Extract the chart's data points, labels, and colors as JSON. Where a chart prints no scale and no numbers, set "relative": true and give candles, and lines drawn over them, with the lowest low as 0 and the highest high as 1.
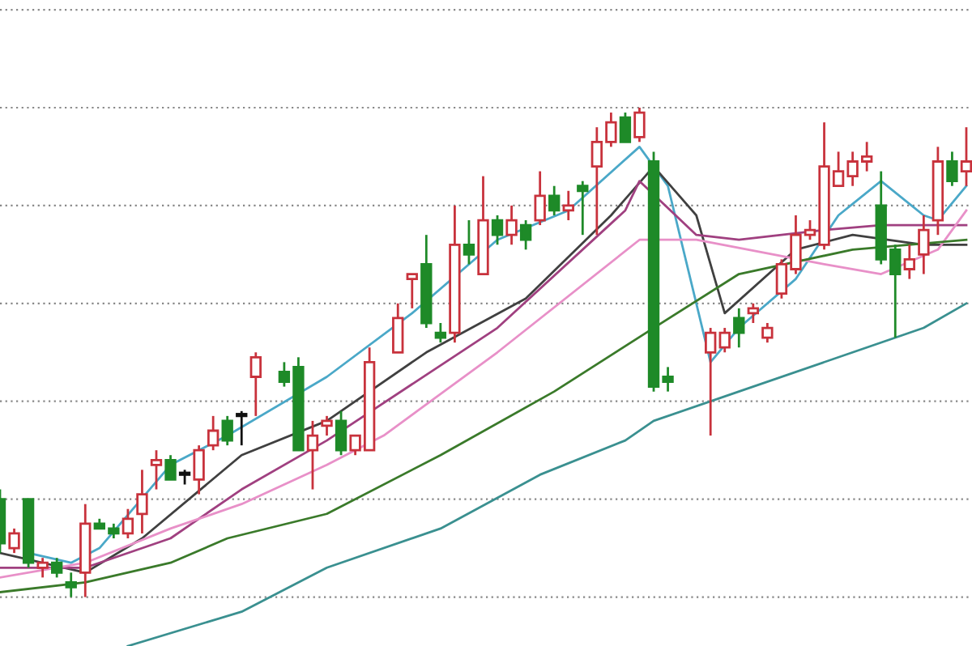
{
  "chart_data": {
    "type": "candlestick",
    "relative": true,
    "grid": "y",
    "categories": [
      null,
      null,
      null,
      null,
      null,
      null,
      null,
      null,
      null,
      null,
      null,
      null,
      null,
      null,
      null,
      null,
      null,
      null,
      null,
      null,
      null,
      null,
      null,
      null,
      null,
      null,
      null,
      null,
      null,
      null,
      null,
      null,
      null,
      null,
      null,
      null,
      null,
      null,
      null,
      null,
      null,
      null,
      null,
      null,
      null,
      null,
      null,
      null,
      null,
      null,
      null,
      null,
      null,
      null,
      null,
      null,
      null,
      null,
      null,
      null,
      null,
      null,
      null,
      null,
      null,
      null,
      null,
      null,
      null
    ],
    "ohlc": [
      [
        0.2,
        0.22,
        0.09,
        0.11
      ],
      [
        0.1,
        0.14,
        0.09,
        0.13
      ],
      [
        0.2,
        0.2,
        0.06,
        0.07
      ],
      [
        0.06,
        0.08,
        0.04,
        0.07
      ],
      [
        0.07,
        0.08,
        0.04,
        0.05
      ],
      [
        0.03,
        0.05,
        0.0,
        0.02
      ],
      [
        0.05,
        0.19,
        0.0,
        0.15
      ],
      [
        0.15,
        0.16,
        0.14,
        0.14
      ],
      [
        0.14,
        0.15,
        0.12,
        0.13
      ],
      [
        0.13,
        0.18,
        0.12,
        0.16
      ],
      [
        0.17,
        0.26,
        0.13,
        0.21
      ],
      [
        0.27,
        0.3,
        0.22,
        0.28
      ],
      [
        0.28,
        0.29,
        0.24,
        0.24
      ],
      [
        0.25,
        0.26,
        0.23,
        0.25
      ],
      [
        0.24,
        0.31,
        0.21,
        0.3
      ],
      [
        0.31,
        0.37,
        0.3,
        0.34
      ],
      [
        0.36,
        0.37,
        0.31,
        0.32
      ],
      [
        0.37,
        0.38,
        0.31,
        0.37
      ],
      [
        0.45,
        0.5,
        0.37,
        0.49
      ],
      null,
      [
        0.46,
        0.48,
        0.43,
        0.44
      ],
      [
        0.47,
        0.49,
        0.3,
        0.3
      ],
      [
        0.3,
        0.36,
        0.22,
        0.33
      ],
      [
        0.35,
        0.37,
        0.33,
        0.36
      ],
      [
        0.36,
        0.38,
        0.29,
        0.3
      ],
      [
        0.3,
        0.33,
        0.29,
        0.33
      ],
      [
        0.3,
        0.51,
        0.3,
        0.48
      ],
      null,
      [
        0.5,
        0.6,
        0.5,
        0.57
      ],
      [
        0.65,
        0.66,
        0.59,
        0.66
      ],
      [
        0.68,
        0.74,
        0.55,
        0.56
      ],
      [
        0.54,
        0.56,
        0.52,
        0.53
      ],
      [
        0.54,
        0.8,
        0.52,
        0.72
      ],
      [
        0.72,
        0.77,
        0.68,
        0.7
      ],
      [
        0.66,
        0.86,
        0.66,
        0.77
      ],
      [
        0.77,
        0.78,
        0.72,
        0.74
      ],
      [
        0.74,
        0.8,
        0.72,
        0.77
      ],
      [
        0.76,
        0.77,
        0.71,
        0.73
      ],
      [
        0.77,
        0.87,
        0.76,
        0.82
      ],
      [
        0.82,
        0.84,
        0.78,
        0.79
      ],
      [
        0.79,
        0.83,
        0.77,
        0.8
      ],
      [
        0.84,
        0.85,
        0.74,
        0.83
      ],
      [
        0.88,
        0.96,
        0.74,
        0.93
      ],
      [
        0.93,
        0.99,
        0.92,
        0.97
      ],
      [
        0.98,
        0.99,
        0.93,
        0.93
      ],
      [
        0.94,
        1.0,
        0.93,
        0.99
      ],
      [
        0.89,
        0.91,
        0.42,
        0.43
      ],
      [
        0.45,
        0.47,
        0.42,
        0.44
      ],
      null,
      null,
      [
        0.5,
        0.55,
        0.33,
        0.54
      ],
      [
        0.51,
        0.55,
        0.5,
        0.54
      ],
      [
        0.57,
        0.59,
        0.51,
        0.54
      ],
      [
        0.58,
        0.6,
        0.56,
        0.59
      ],
      [
        0.53,
        0.56,
        0.52,
        0.55
      ],
      [
        0.62,
        0.69,
        0.61,
        0.68
      ],
      [
        0.67,
        0.78,
        0.66,
        0.74
      ],
      [
        0.74,
        0.77,
        0.73,
        0.75
      ],
      [
        0.72,
        0.97,
        0.71,
        0.88
      ],
      [
        0.84,
        0.91,
        0.84,
        0.87
      ],
      [
        0.86,
        0.91,
        0.84,
        0.89
      ],
      [
        0.89,
        0.93,
        0.87,
        0.9
      ],
      [
        0.8,
        0.87,
        0.68,
        0.69
      ],
      [
        0.71,
        0.72,
        0.53,
        0.66
      ],
      [
        0.67,
        0.72,
        0.65,
        0.69
      ],
      [
        0.7,
        0.78,
        0.66,
        0.75
      ],
      [
        0.77,
        0.92,
        0.74,
        0.89
      ],
      [
        0.89,
        0.91,
        0.84,
        0.85
      ],
      [
        0.87,
        0.96,
        0.84,
        0.89
      ]
    ],
    "series": [
      {
        "type": "line",
        "color": "#4aa8c8",
        "values": [
          null,
          null,
          0.09,
          null,
          null,
          0.07,
          null,
          0.1,
          null,
          null,
          null,
          null,
          0.27,
          null,
          null,
          null,
          0.33,
          null,
          null,
          null,
          null,
          null,
          null,
          0.45,
          null,
          null,
          null,
          null,
          null,
          0.58,
          null,
          null,
          null,
          null,
          null,
          0.73,
          null,
          null,
          null,
          null,
          0.79,
          null,
          null,
          null,
          null,
          0.92,
          null,
          0.84,
          null,
          null,
          0.48,
          null,
          0.55,
          null,
          null,
          null,
          0.65,
          null,
          null,
          0.78,
          null,
          null,
          0.85,
          null,
          null,
          0.78,
          0.77,
          null,
          0.84
        ]
      },
      {
        "type": "line",
        "color": "#404040",
        "values": [
          0.09,
          null,
          null,
          null,
          null,
          null,
          0.05,
          null,
          null,
          null,
          0.12,
          null,
          null,
          null,
          null,
          null,
          null,
          0.29,
          null,
          null,
          null,
          null,
          null,
          0.36,
          null,
          null,
          null,
          null,
          null,
          null,
          0.5,
          null,
          null,
          null,
          null,
          null,
          null,
          0.61,
          null,
          null,
          null,
          null,
          null,
          0.78,
          null,
          null,
          0.88,
          null,
          null,
          0.78,
          null,
          0.58,
          null,
          null,
          null,
          null,
          0.71,
          null,
          null,
          null,
          0.74,
          null,
          null,
          null,
          null,
          0.72,
          null,
          null,
          0.72
        ]
      },
      {
        "type": "line",
        "color": "#a04080",
        "values": [
          0.06,
          null,
          null,
          null,
          null,
          null,
          0.06,
          null,
          null,
          null,
          null,
          null,
          0.12,
          null,
          null,
          null,
          null,
          0.22,
          null,
          null,
          null,
          null,
          null,
          0.32,
          null,
          null,
          null,
          null,
          null,
          null,
          null,
          null,
          null,
          null,
          null,
          0.55,
          null,
          null,
          null,
          null,
          null,
          null,
          null,
          null,
          0.79,
          0.85,
          null,
          null,
          null,
          0.74,
          null,
          null,
          0.73,
          null,
          null,
          null,
          null,
          null,
          0.75,
          null,
          null,
          null,
          0.76,
          null,
          null,
          null,
          null,
          null,
          0.76
        ]
      },
      {
        "type": "line",
        "color": "#e890c8",
        "values": [
          0.04,
          null,
          null,
          null,
          null,
          null,
          0.07,
          null,
          null,
          null,
          null,
          null,
          0.14,
          null,
          null,
          null,
          null,
          0.19,
          null,
          null,
          null,
          null,
          null,
          0.27,
          null,
          null,
          null,
          0.33,
          null,
          null,
          null,
          null,
          null,
          null,
          null,
          0.5,
          null,
          null,
          null,
          null,
          null,
          null,
          null,
          null,
          null,
          0.73,
          null,
          null,
          null,
          0.73,
          null,
          null,
          null,
          null,
          null,
          null,
          null,
          null,
          0.68,
          null,
          null,
          null,
          0.66,
          null,
          null,
          null,
          0.71,
          null,
          0.79
        ]
      },
      {
        "type": "line",
        "color": "#3a7a2a",
        "values": [
          0.01,
          null,
          null,
          null,
          null,
          null,
          0.03,
          null,
          null,
          null,
          null,
          null,
          0.07,
          null,
          null,
          null,
          0.12,
          null,
          null,
          null,
          null,
          null,
          null,
          0.17,
          null,
          null,
          null,
          null,
          null,
          null,
          null,
          0.29,
          null,
          null,
          null,
          null,
          null,
          null,
          null,
          0.42,
          null,
          null,
          null,
          null,
          null,
          null,
          0.55,
          null,
          null,
          null,
          null,
          null,
          0.66,
          null,
          null,
          null,
          null,
          null,
          null,
          null,
          0.71,
          null,
          null,
          null,
          null,
          null,
          null,
          null,
          0.73
        ]
      },
      {
        "type": "line",
        "color": "#3a9090",
        "values": [
          null,
          null,
          null,
          null,
          null,
          null,
          null,
          null,
          null,
          -0.1,
          null,
          null,
          null,
          null,
          null,
          null,
          null,
          -0.03,
          null,
          null,
          null,
          null,
          null,
          0.06,
          null,
          null,
          null,
          null,
          null,
          null,
          null,
          0.14,
          null,
          null,
          null,
          null,
          null,
          null,
          0.25,
          null,
          null,
          null,
          null,
          null,
          0.32,
          null,
          0.36,
          null,
          null,
          null,
          null,
          null,
          0.42,
          null,
          null,
          null,
          null,
          null,
          null,
          null,
          0.5,
          null,
          null,
          null,
          null,
          0.55,
          null,
          null,
          0.6
        ]
      }
    ]
  }
}
